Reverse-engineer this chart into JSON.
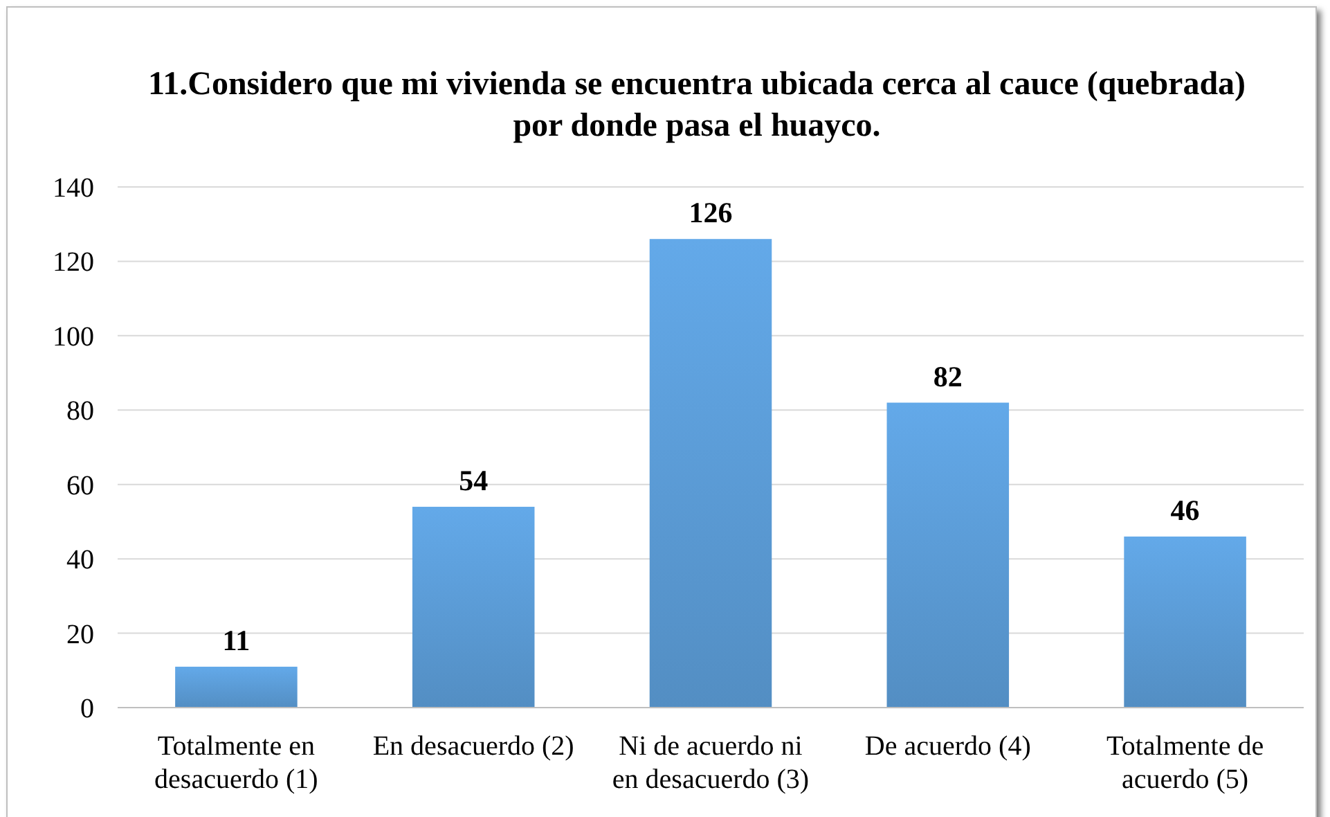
{
  "chart_data": {
    "type": "bar",
    "title": "11.Considero que mi vivienda se encuentra ubicada cerca al cauce (quebrada) por donde pasa el huayco.",
    "categories": [
      "Totalmente en desacuerdo (1)",
      "En desacuerdo (2)",
      "Ni de acuerdo ni en desacuerdo (3)",
      "De acuerdo (4)",
      "Totalmente de acuerdo (5)"
    ],
    "values": [
      11,
      54,
      126,
      82,
      46
    ],
    "color": "#5b9bd5",
    "ylim": [
      0,
      140
    ],
    "yticks": [
      0,
      20,
      40,
      60,
      80,
      100,
      120,
      140
    ],
    "grid": "y",
    "data_labels": true
  }
}
